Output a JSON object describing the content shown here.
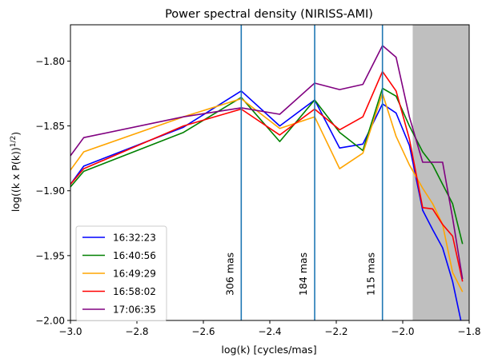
{
  "chart_data": {
    "type": "line",
    "title": "Power spectral density (NIRISS-AMI)",
    "xlabel": "log(k) [cycles/mas]",
    "ylabel": "log((k x P(k))^1/2)",
    "ylabel_main": "log((k x P(k))",
    "ylabel_exponent": "1/2",
    "ylabel_close": ")",
    "xlim": [
      -3.0,
      -1.8
    ],
    "ylim": [
      -2.0,
      -1.772
    ],
    "xticks": [
      -3.0,
      -2.8,
      -2.6,
      -2.4,
      -2.2,
      -2.0,
      -1.8
    ],
    "xtick_labels": [
      "−3.0",
      "−2.8",
      "−2.6",
      "−2.4",
      "−2.2",
      "−2.0",
      "−1.8"
    ],
    "yticks": [
      -2.0,
      -1.95,
      -1.9,
      -1.85,
      -1.8
    ],
    "ytick_labels": [
      "−2.00",
      "−1.95",
      "−1.90",
      "−1.85",
      "−1.80"
    ],
    "grid": false,
    "shaded_region": {
      "x_from": -1.97,
      "x_to": -1.8,
      "color": "#bfbfbf"
    },
    "vertical_lines": [
      {
        "x": -2.486,
        "label": "306 mas",
        "color": "#1f77b4"
      },
      {
        "x": -2.265,
        "label": "184 mas",
        "color": "#1f77b4"
      },
      {
        "x": -2.061,
        "label": "115 mas",
        "color": "#1f77b4"
      }
    ],
    "legend_position": "lower-left",
    "series": [
      {
        "name": "16:32:23",
        "color": "#0000ff",
        "x": [
          -3.0,
          -2.96,
          -2.66,
          -2.486,
          -2.37,
          -2.265,
          -2.19,
          -2.12,
          -2.061,
          -2.02,
          -1.98,
          -1.94,
          -1.91,
          -1.88,
          -1.85,
          -1.825
        ],
        "y": [
          -1.895,
          -1.881,
          -1.851,
          -1.823,
          -1.85,
          -1.83,
          -1.867,
          -1.864,
          -1.833,
          -1.84,
          -1.865,
          -1.915,
          -1.93,
          -1.944,
          -1.97,
          -2.0
        ]
      },
      {
        "name": "16:40:56",
        "color": "#008000",
        "x": [
          -3.0,
          -2.96,
          -2.66,
          -2.486,
          -2.37,
          -2.265,
          -2.19,
          -2.12,
          -2.061,
          -2.02,
          -1.98,
          -1.94,
          -1.91,
          -1.88,
          -1.85,
          -1.82
        ],
        "y": [
          -1.897,
          -1.885,
          -1.855,
          -1.828,
          -1.862,
          -1.83,
          -1.855,
          -1.869,
          -1.821,
          -1.827,
          -1.85,
          -1.87,
          -1.88,
          -1.895,
          -1.91,
          -1.941
        ]
      },
      {
        "name": "16:49:29",
        "color": "#ffa500",
        "x": [
          -3.0,
          -2.96,
          -2.66,
          -2.486,
          -2.37,
          -2.265,
          -2.19,
          -2.12,
          -2.061,
          -2.02,
          -1.98,
          -1.94,
          -1.91,
          -1.88,
          -1.85,
          -1.82
        ],
        "y": [
          -1.884,
          -1.87,
          -1.843,
          -1.829,
          -1.852,
          -1.843,
          -1.883,
          -1.871,
          -1.825,
          -1.858,
          -1.88,
          -1.898,
          -1.91,
          -1.926,
          -1.963,
          -1.978
        ]
      },
      {
        "name": "16:58:02",
        "color": "#ff0000",
        "x": [
          -3.0,
          -2.96,
          -2.66,
          -2.486,
          -2.37,
          -2.265,
          -2.19,
          -2.12,
          -2.061,
          -2.02,
          -1.98,
          -1.94,
          -1.91,
          -1.88,
          -1.85,
          -1.82
        ],
        "y": [
          -1.895,
          -1.883,
          -1.85,
          -1.837,
          -1.857,
          -1.837,
          -1.853,
          -1.843,
          -1.808,
          -1.823,
          -1.86,
          -1.913,
          -1.914,
          -1.926,
          -1.935,
          -1.97
        ]
      },
      {
        "name": "17:06:35",
        "color": "#800080",
        "x": [
          -3.0,
          -2.96,
          -2.66,
          -2.486,
          -2.37,
          -2.265,
          -2.19,
          -2.12,
          -2.061,
          -2.02,
          -1.98,
          -1.94,
          -1.91,
          -1.88,
          -1.85,
          -1.82
        ],
        "y": [
          -1.873,
          -1.859,
          -1.843,
          -1.836,
          -1.841,
          -1.817,
          -1.822,
          -1.818,
          -1.788,
          -1.797,
          -1.843,
          -1.878,
          -1.878,
          -1.878,
          -1.921,
          -1.968
        ]
      }
    ]
  }
}
